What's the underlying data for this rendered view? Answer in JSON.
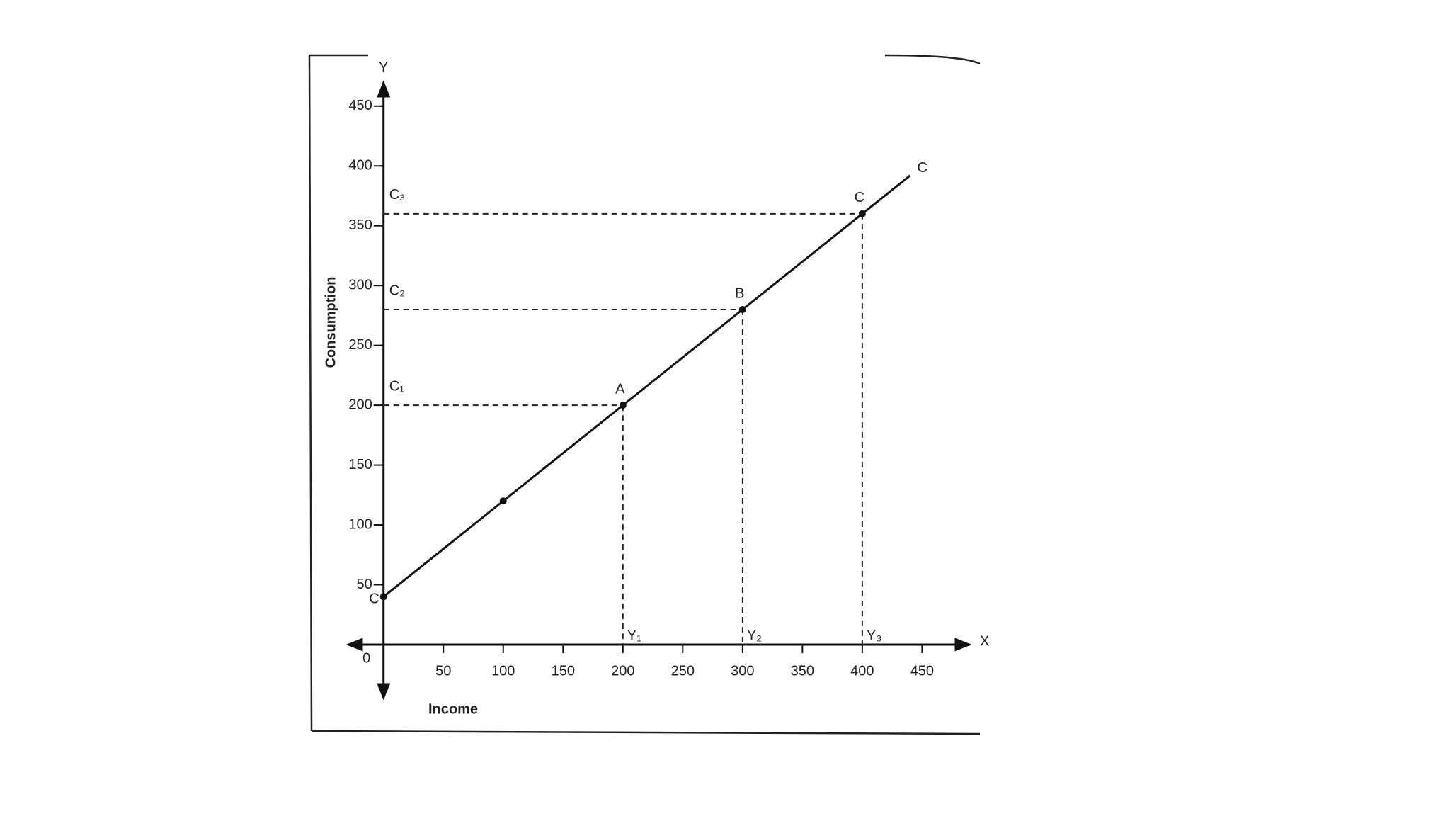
{
  "chart_data": {
    "type": "line",
    "x_label": "Income",
    "y_label": "Consumption",
    "x_axis_letter": "X",
    "y_axis_letter": "Y",
    "origin_label": "0",
    "xlim": [
      -30,
      490
    ],
    "ylim": [
      -45,
      470
    ],
    "xticks": [
      50,
      100,
      150,
      200,
      250,
      300,
      350,
      400,
      450
    ],
    "yticks": [
      50,
      100,
      150,
      200,
      250,
      300,
      350,
      400,
      450
    ],
    "color": "#111111",
    "x": [
      0,
      440
    ],
    "values": [
      40,
      392
    ],
    "line_label": "C",
    "points": {
      "x": [
        0,
        100,
        200,
        300,
        400
      ],
      "values": [
        40,
        120,
        200,
        280,
        360
      ],
      "labels": [
        "C",
        null,
        "A",
        "B",
        "C"
      ]
    },
    "guides": {
      "x": [
        200,
        300,
        400
      ],
      "values": [
        200,
        280,
        360
      ],
      "x_labels": [
        "Y₁",
        "Y₂",
        "Y₃"
      ],
      "y_labels": [
        "C₁",
        "C₂",
        "C₃"
      ]
    }
  }
}
